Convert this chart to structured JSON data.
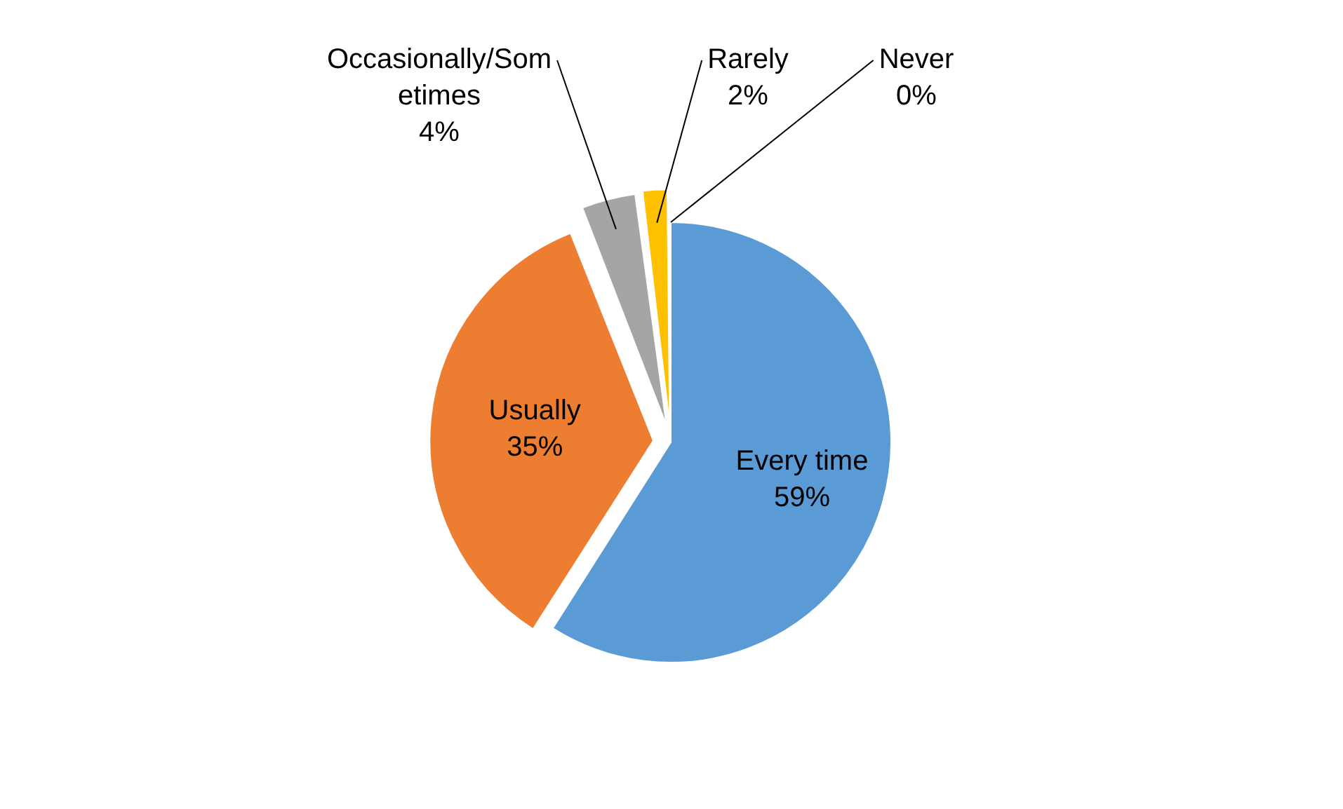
{
  "chart_data": {
    "type": "pie",
    "categories": [
      "Every time",
      "Usually",
      "Occasionally/Sometimes",
      "Rarely",
      "Never"
    ],
    "values": [
      59,
      35,
      4,
      2,
      0
    ],
    "colors": [
      "#5b9bd5",
      "#ed7d31",
      "#a5a5a5",
      "#ffc000",
      "#4472c4"
    ],
    "value_labels": [
      "59%",
      "35%",
      "4%",
      "2%",
      "0%"
    ],
    "legend": false
  }
}
